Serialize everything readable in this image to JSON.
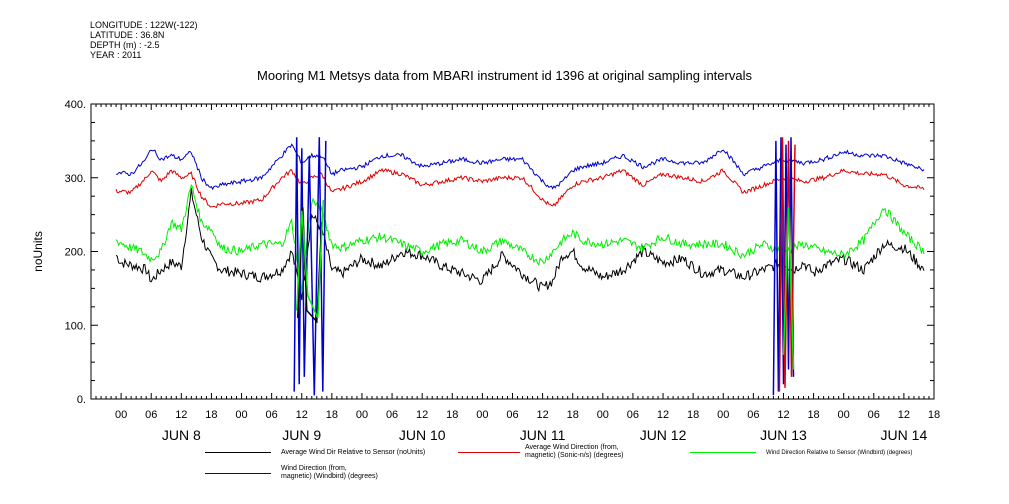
{
  "meta": {
    "longitude": "LONGITUDE : 122W(-122)",
    "latitude": "LATITUDE : 36.8N",
    "depth": "DEPTH (m) : -2.5",
    "year": "YEAR : 2011"
  },
  "colors": {
    "black": "#000000",
    "red": "#dd0000",
    "green": "#00ee00",
    "blue": "#0000cc"
  },
  "chart_data": {
    "type": "line",
    "title": "Mooring M1 Metsys data from MBARI instrument id 1396 at original sampling intervals",
    "ylabel": "noUnits",
    "xlabel": "",
    "ylim": [
      0,
      400
    ],
    "yticks": [
      "0.",
      "100.",
      "200.",
      "300.",
      "400."
    ],
    "xlim_hours": [
      -6,
      162
    ],
    "hour_tick_labels": [
      "00",
      "06",
      "12",
      "18",
      "00",
      "06",
      "12",
      "18",
      "00",
      "06",
      "12",
      "18",
      "00",
      "06",
      "12",
      "18",
      "00",
      "06",
      "12",
      "18",
      "00",
      "06",
      "12",
      "18",
      "00",
      "06",
      "12",
      "18"
    ],
    "day_labels": [
      "JUN  8",
      "JUN  9",
      "JUN 10",
      "JUN 11",
      "JUN 12",
      "JUN 13",
      "JUN 14"
    ],
    "series": [
      {
        "name": "Average Wind Dir Relative to Sensor (noUnits)",
        "color": "#000000",
        "x": [
          -1,
          0,
          3,
          5,
          6,
          8,
          10,
          12,
          14,
          16,
          18,
          20,
          24,
          28,
          32,
          34,
          36,
          38,
          40,
          42,
          44,
          48,
          52,
          56,
          60,
          64,
          68,
          72,
          76,
          80,
          84,
          86,
          88,
          90,
          92,
          96,
          100,
          104,
          108,
          112,
          116,
          120,
          124,
          128,
          130,
          132,
          134,
          136,
          138,
          140,
          144,
          148,
          152,
          156,
          160
        ],
        "y": [
          195,
          185,
          180,
          175,
          160,
          175,
          185,
          180,
          280,
          220,
          190,
          175,
          170,
          165,
          175,
          200,
          140,
          250,
          230,
          175,
          170,
          190,
          180,
          200,
          195,
          180,
          170,
          160,
          195,
          170,
          150,
          160,
          195,
          200,
          180,
          165,
          175,
          200,
          185,
          190,
          170,
          175,
          165,
          175,
          180,
          185,
          175,
          185,
          170,
          180,
          190,
          175,
          210,
          205,
          175
        ]
      },
      {
        "name": "Average Wind Direction (from,\nmagnetic) (Sonic-n/s) (degrees)",
        "color": "#dd0000",
        "x": [
          -1,
          2,
          5,
          6,
          8,
          10,
          12,
          14,
          16,
          18,
          20,
          24,
          28,
          32,
          34,
          36,
          38,
          40,
          42,
          44,
          48,
          52,
          56,
          60,
          64,
          68,
          72,
          76,
          80,
          84,
          86,
          88,
          90,
          92,
          96,
          100,
          104,
          108,
          112,
          116,
          120,
          124,
          128,
          132,
          136,
          140,
          144,
          148,
          152,
          156,
          160
        ],
        "y": [
          282,
          280,
          300,
          310,
          295,
          310,
          300,
          305,
          275,
          260,
          265,
          265,
          270,
          300,
          310,
          290,
          300,
          305,
          280,
          285,
          295,
          310,
          305,
          290,
          295,
          300,
          295,
          300,
          300,
          270,
          260,
          275,
          290,
          295,
          300,
          310,
          290,
          305,
          300,
          295,
          310,
          280,
          290,
          300,
          295,
          300,
          310,
          305,
          305,
          290,
          285
        ]
      },
      {
        "name": "Wind Direction Relative to Sensor (Windbird) (degrees)",
        "color": "#00ee00",
        "x": [
          -1,
          2,
          4,
          6,
          8,
          10,
          12,
          14,
          16,
          18,
          20,
          24,
          28,
          32,
          34,
          36,
          38,
          40,
          42,
          44,
          48,
          52,
          56,
          60,
          64,
          68,
          72,
          76,
          80,
          84,
          86,
          88,
          90,
          92,
          96,
          100,
          104,
          108,
          112,
          116,
          120,
          124,
          128,
          132,
          136,
          140,
          144,
          148,
          152,
          156,
          160
        ],
        "y": [
          215,
          205,
          200,
          190,
          200,
          240,
          230,
          290,
          240,
          230,
          205,
          200,
          210,
          210,
          240,
          150,
          270,
          255,
          210,
          205,
          215,
          220,
          210,
          200,
          210,
          215,
          200,
          215,
          200,
          185,
          200,
          215,
          225,
          215,
          210,
          215,
          205,
          220,
          210,
          210,
          210,
          195,
          210,
          200,
          210,
          200,
          195,
          215,
          260,
          225,
          200
        ]
      },
      {
        "name": "Wind Direction (from,\nmagnetic) (Windbird) (degrees)",
        "color": "#0000cc",
        "x": [
          -1,
          2,
          5,
          6,
          8,
          10,
          12,
          14,
          16,
          18,
          20,
          24,
          28,
          32,
          34,
          36,
          38,
          40,
          42,
          44,
          48,
          52,
          56,
          60,
          64,
          68,
          72,
          76,
          80,
          84,
          86,
          88,
          90,
          92,
          96,
          100,
          104,
          108,
          112,
          116,
          120,
          124,
          128,
          132,
          136,
          140,
          144,
          148,
          152,
          156,
          160
        ],
        "y": [
          307,
          305,
          325,
          340,
          325,
          330,
          325,
          335,
          300,
          285,
          290,
          295,
          300,
          330,
          345,
          320,
          330,
          330,
          305,
          310,
          315,
          330,
          330,
          315,
          320,
          325,
          320,
          325,
          325,
          295,
          285,
          295,
          310,
          315,
          320,
          330,
          315,
          325,
          320,
          320,
          340,
          305,
          315,
          325,
          320,
          325,
          335,
          330,
          330,
          320,
          310
        ]
      }
    ],
    "spikes": [
      {
        "series": 3,
        "x": [
          34.5,
          35.0,
          35.5,
          36.0,
          36.5,
          37.5,
          38.5,
          39.5,
          40.2,
          40.8
        ],
        "y": [
          10,
          355,
          20,
          340,
          30,
          330,
          5,
          355,
          10,
          350
        ]
      },
      {
        "series": 0,
        "x": [
          35.2,
          36.2,
          37.0,
          39.0,
          40.0
        ],
        "y": [
          110,
          260,
          120,
          105,
          240
        ]
      },
      {
        "series": 2,
        "x": [
          35.0,
          36.0,
          37.2,
          39.2,
          40.3
        ],
        "y": [
          120,
          255,
          140,
          110,
          270
        ]
      },
      {
        "series": 3,
        "x": [
          130.0,
          130.5,
          131.0,
          131.5,
          132.0,
          132.5,
          133.0,
          133.5,
          134.0
        ],
        "y": [
          5,
          350,
          10,
          355,
          20,
          345,
          40,
          355,
          30
        ]
      },
      {
        "series": 1,
        "x": [
          131.2,
          131.8,
          132.3,
          133.0,
          133.6,
          134.3
        ],
        "y": [
          10,
          355,
          15,
          350,
          30,
          345
        ]
      },
      {
        "series": 2,
        "x": [
          132.0,
          133.0,
          134.0
        ],
        "y": [
          60,
          260,
          40
        ]
      }
    ]
  }
}
